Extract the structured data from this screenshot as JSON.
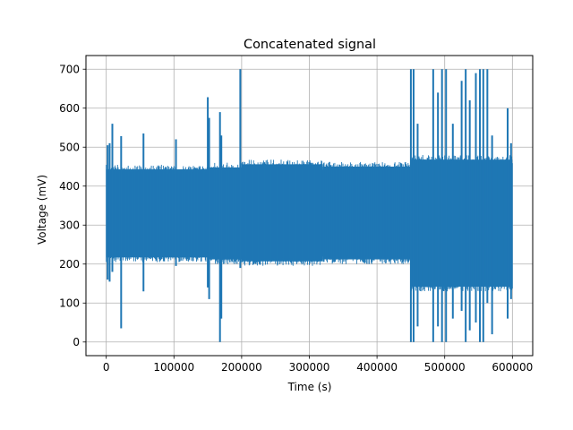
{
  "chart_data": {
    "type": "line",
    "title": "Concatenated signal",
    "xlabel": "Time (s)",
    "ylabel": "Voltage (mV)",
    "xlim": [
      -30000,
      630000
    ],
    "ylim": [
      -35,
      735
    ],
    "xticks": [
      0,
      100000,
      200000,
      300000,
      400000,
      500000,
      600000
    ],
    "yticks": [
      0,
      100,
      200,
      300,
      400,
      500,
      600,
      700
    ],
    "grid": true,
    "color": "#1f77b4",
    "series": [
      {
        "band_segments": [
          {
            "x_start": 0,
            "x_end": 150000,
            "low": 205,
            "high": 455
          },
          {
            "x_start": 150000,
            "x_end": 200000,
            "low": 200,
            "high": 460
          },
          {
            "x_start": 200000,
            "x_end": 320000,
            "low": 195,
            "high": 468
          },
          {
            "x_start": 320000,
            "x_end": 450000,
            "low": 200,
            "high": 462
          },
          {
            "x_start": 450000,
            "x_end": 600000,
            "low": 130,
            "high": 480
          }
        ],
        "spikes": [
          {
            "x": 2000,
            "low": 160,
            "high": 505
          },
          {
            "x": 5000,
            "low": 155,
            "high": 510
          },
          {
            "x": 9000,
            "low": 180,
            "high": 560
          },
          {
            "x": 22000,
            "low": 35,
            "high": 528
          },
          {
            "x": 55000,
            "low": 130,
            "high": 535
          },
          {
            "x": 103000,
            "low": 195,
            "high": 520
          },
          {
            "x": 150000,
            "low": 140,
            "high": 628
          },
          {
            "x": 152000,
            "low": 110,
            "high": 575
          },
          {
            "x": 168000,
            "low": 0,
            "high": 590
          },
          {
            "x": 170000,
            "low": 60,
            "high": 530
          },
          {
            "x": 198000,
            "low": 190,
            "high": 700
          },
          {
            "x": 450000,
            "low": 0,
            "high": 700
          },
          {
            "x": 454000,
            "low": 0,
            "high": 700
          },
          {
            "x": 460000,
            "low": 40,
            "high": 560
          },
          {
            "x": 483000,
            "low": 0,
            "high": 700
          },
          {
            "x": 490000,
            "low": 40,
            "high": 640
          },
          {
            "x": 496000,
            "low": 0,
            "high": 700
          },
          {
            "x": 502000,
            "low": 0,
            "high": 700
          },
          {
            "x": 512000,
            "low": 60,
            "high": 560
          },
          {
            "x": 525000,
            "low": 80,
            "high": 670
          },
          {
            "x": 531000,
            "low": 0,
            "high": 700
          },
          {
            "x": 537000,
            "low": 30,
            "high": 620
          },
          {
            "x": 546000,
            "low": 50,
            "high": 690
          },
          {
            "x": 552000,
            "low": 0,
            "high": 700
          },
          {
            "x": 557000,
            "low": 0,
            "high": 700
          },
          {
            "x": 563000,
            "low": 100,
            "high": 700
          },
          {
            "x": 570000,
            "low": 20,
            "high": 530
          },
          {
            "x": 593000,
            "low": 60,
            "high": 600
          },
          {
            "x": 598000,
            "low": 110,
            "high": 510
          }
        ]
      }
    ]
  }
}
